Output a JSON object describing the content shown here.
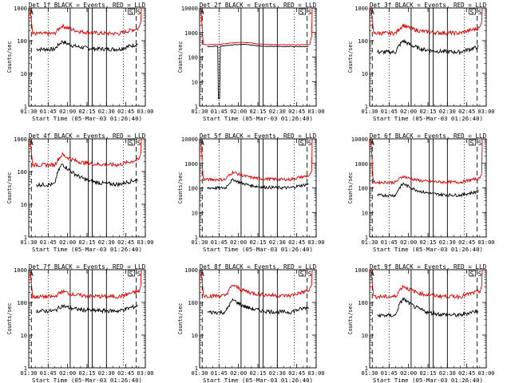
{
  "colors": {
    "events": "#000000",
    "lld": "#e00000",
    "axis": "#000000",
    "background": "#ffffff"
  },
  "chart_data": [
    {
      "type": "line",
      "title": "Det 1f BLACK = Events, RED = LLD",
      "xlabel": "Start Time (05-Mar-03 01:26:40)",
      "ylabel": "Counts/sec",
      "yscale": "log",
      "ylim": [
        1,
        1000
      ],
      "x_ticks": [
        "01:30",
        "01:45",
        "02:00",
        "02:15",
        "02:30",
        "02:45",
        "03:00"
      ],
      "y_ticks": [
        "1",
        "10",
        "100",
        "1000"
      ],
      "xlim_min": [
        90,
        180
      ],
      "vertical_lines": {
        "dashed": [
          92,
          173
        ],
        "dotted": [
          105,
          163
        ],
        "solid": [
          122,
          136,
          139,
          150
        ]
      },
      "markers": [
        "A",
        "S",
        "S"
      ],
      "series": [
        {
          "name": "Events",
          "profile": "flare",
          "base": 55,
          "flare": 95
        },
        {
          "name": "LLD",
          "profile": "flare",
          "base": 165,
          "flare": 290,
          "start": 1000
        }
      ]
    },
    {
      "type": "line",
      "title": "Det 2f BLACK = Events, RED = LLD",
      "xlabel": "Start Time (05-Mar-03 01:26:40)",
      "ylabel": "Counts/sec",
      "yscale": "log",
      "ylim": [
        1,
        10000
      ],
      "x_ticks": [
        "01:30",
        "01:45",
        "02:00",
        "02:15",
        "02:30",
        "02:45",
        "03:00"
      ],
      "y_ticks": [
        "1",
        "10",
        "100",
        "1000",
        "10000"
      ],
      "xlim_min": [
        90,
        180
      ],
      "vertical_lines": {
        "dashed": [
          92,
          173
        ],
        "dotted": [
          105,
          163
        ],
        "solid": [
          122,
          136,
          139,
          150
        ]
      },
      "markers": [
        "A",
        "S",
        "S"
      ],
      "series": [
        {
          "name": "Events",
          "profile": "hump",
          "base": 270,
          "flare": 330,
          "dip": 2
        },
        {
          "name": "LLD",
          "profile": "hump",
          "base": 320,
          "flare": 400,
          "start": 10000
        }
      ]
    },
    {
      "type": "line",
      "title": "Det 3f BLACK = Events, RED = LLD",
      "xlabel": "Start Time (05-Mar-03 01:26:40)",
      "ylabel": "Counts/sec",
      "yscale": "log",
      "ylim": [
        1,
        1000
      ],
      "x_ticks": [
        "01:30",
        "01:45",
        "02:00",
        "02:15",
        "02:30",
        "02:45",
        "03:00"
      ],
      "y_ticks": [
        "1",
        "10",
        "100",
        "1000"
      ],
      "xlim_min": [
        90,
        180
      ],
      "vertical_lines": {
        "dashed": [
          92,
          173
        ],
        "dotted": [
          105,
          163
        ],
        "solid": [
          122,
          136,
          139,
          150
        ]
      },
      "markers": [
        "A",
        "S",
        "S"
      ],
      "series": [
        {
          "name": "Events",
          "profile": "flare",
          "base": 45,
          "flare": 100
        },
        {
          "name": "LLD",
          "profile": "flare",
          "base": 170,
          "flare": 300,
          "start": 1000
        }
      ]
    },
    {
      "type": "line",
      "title": "Det 4f BLACK = Events, RED = LLD",
      "xlabel": "Start Time (05-Mar-03 01:26:40)",
      "ylabel": "Counts/sec",
      "yscale": "log",
      "ylim": [
        1,
        1000
      ],
      "x_ticks": [
        "01:30",
        "01:45",
        "02:00",
        "02:15",
        "02:30",
        "02:45",
        "03:00"
      ],
      "y_ticks": [
        "1",
        "10",
        "100",
        "1000"
      ],
      "xlim_min": [
        90,
        180
      ],
      "vertical_lines": {
        "dashed": [
          92,
          173
        ],
        "dotted": [
          105,
          163
        ],
        "solid": [
          122,
          136,
          139,
          150
        ]
      },
      "markers": [
        "A",
        "S",
        "S"
      ],
      "series": [
        {
          "name": "Events",
          "profile": "flare",
          "base": 40,
          "flare": 170
        },
        {
          "name": "LLD",
          "profile": "flare",
          "base": 160,
          "flare": 330,
          "start": 1000
        }
      ]
    },
    {
      "type": "line",
      "title": "Det 5f BLACK = Events, RED = LLD",
      "xlabel": "Start Time (05-Mar-03 01:26:40)",
      "ylabel": "Counts/sec",
      "yscale": "log",
      "ylim": [
        1,
        10000
      ],
      "x_ticks": [
        "01:30",
        "01:45",
        "02:00",
        "02:15",
        "02:30",
        "02:45",
        "03:00"
      ],
      "y_ticks": [
        "1",
        "10",
        "100",
        "1000",
        "10000"
      ],
      "xlim_min": [
        90,
        180
      ],
      "vertical_lines": {
        "dashed": [
          92,
          173
        ],
        "dotted": [
          105,
          163
        ],
        "solid": [
          122,
          136,
          139,
          150
        ]
      },
      "markers": [
        "A",
        "S",
        "S"
      ],
      "series": [
        {
          "name": "Events",
          "profile": "flare",
          "base": 100,
          "flare": 220
        },
        {
          "name": "LLD",
          "profile": "flare",
          "base": 220,
          "flare": 450,
          "start": 10000
        }
      ]
    },
    {
      "type": "line",
      "title": "Det 6f BLACK = Events, RED = LLD",
      "xlabel": "Start Time (05-Mar-03 01:26:40)",
      "ylabel": "Counts/sec",
      "yscale": "log",
      "ylim": [
        1,
        10000
      ],
      "x_ticks": [
        "01:30",
        "01:45",
        "02:00",
        "02:15",
        "02:30",
        "02:45",
        "03:00"
      ],
      "y_ticks": [
        "1",
        "10",
        "100",
        "1000",
        "10000"
      ],
      "xlim_min": [
        90,
        180
      ],
      "vertical_lines": {
        "dashed": [
          92,
          173
        ],
        "dotted": [
          105,
          163
        ],
        "solid": [
          122,
          136,
          139,
          150
        ]
      },
      "markers": [
        "A",
        "S",
        "S"
      ],
      "series": [
        {
          "name": "Events",
          "profile": "flare",
          "base": 50,
          "flare": 150
        },
        {
          "name": "LLD",
          "profile": "flare",
          "base": 170,
          "flare": 300,
          "start": 10000
        }
      ]
    },
    {
      "type": "line",
      "title": "Det 7f BLACK = Events, RED = LLD",
      "xlabel": "Start Time (05-Mar-03 01:26:40)",
      "ylabel": "Counts/sec",
      "yscale": "log",
      "ylim": [
        1,
        1000
      ],
      "x_ticks": [
        "01:30",
        "01:45",
        "02:00",
        "02:15",
        "02:30",
        "02:45",
        "03:00"
      ],
      "y_ticks": [
        "1",
        "10",
        "100",
        "1000"
      ],
      "xlim_min": [
        90,
        180
      ],
      "vertical_lines": {
        "dashed": [
          92,
          173
        ],
        "dotted": [
          105,
          163
        ],
        "solid": [
          122,
          136,
          139,
          150
        ]
      },
      "markers": [
        "A",
        "S",
        "S"
      ],
      "series": [
        {
          "name": "Events",
          "profile": "flare",
          "base": 55,
          "flare": 80
        },
        {
          "name": "LLD",
          "profile": "flare",
          "base": 150,
          "flare": 220,
          "start": 1000
        }
      ]
    },
    {
      "type": "line",
      "title": "Det 8f BLACK = Events, RED = LLD",
      "xlabel": "Start Time (05-Mar-03 01:26:40)",
      "ylabel": "Counts/sec",
      "yscale": "log",
      "ylim": [
        1,
        1000
      ],
      "x_ticks": [
        "01:30",
        "01:45",
        "02:00",
        "02:15",
        "02:30",
        "02:45",
        "03:00"
      ],
      "y_ticks": [
        "1",
        "10",
        "100",
        "1000"
      ],
      "xlim_min": [
        90,
        180
      ],
      "vertical_lines": {
        "dashed": [
          92,
          173
        ],
        "dotted": [
          105,
          163
        ],
        "solid": [
          122,
          136,
          139,
          150
        ]
      },
      "markers": [
        "A",
        "S",
        "S"
      ],
      "series": [
        {
          "name": "Events",
          "profile": "flare",
          "base": 50,
          "flare": 120
        },
        {
          "name": "LLD",
          "profile": "flare",
          "base": 160,
          "flare": 340,
          "start": 1000
        }
      ]
    },
    {
      "type": "line",
      "title": "Det 9f BLACK = Events, RED = LLD",
      "xlabel": "Start Time (05-Mar-03 01:26:40)",
      "ylabel": "Counts/sec",
      "yscale": "log",
      "ylim": [
        1,
        1000
      ],
      "x_ticks": [
        "01:30",
        "01:45",
        "02:00",
        "02:15",
        "02:30",
        "02:45",
        "03:00"
      ],
      "y_ticks": [
        "1",
        "10",
        "100",
        "1000"
      ],
      "xlim_min": [
        90,
        180
      ],
      "vertical_lines": {
        "dashed": [
          92,
          173
        ],
        "dotted": [
          105,
          163
        ],
        "solid": [
          122,
          136,
          139,
          150
        ]
      },
      "markers": [
        "A",
        "S",
        "S"
      ],
      "series": [
        {
          "name": "Events",
          "profile": "flare",
          "base": 40,
          "flare": 130
        },
        {
          "name": "LLD",
          "profile": "flare",
          "base": 150,
          "flare": 320,
          "start": 1000
        }
      ]
    }
  ]
}
